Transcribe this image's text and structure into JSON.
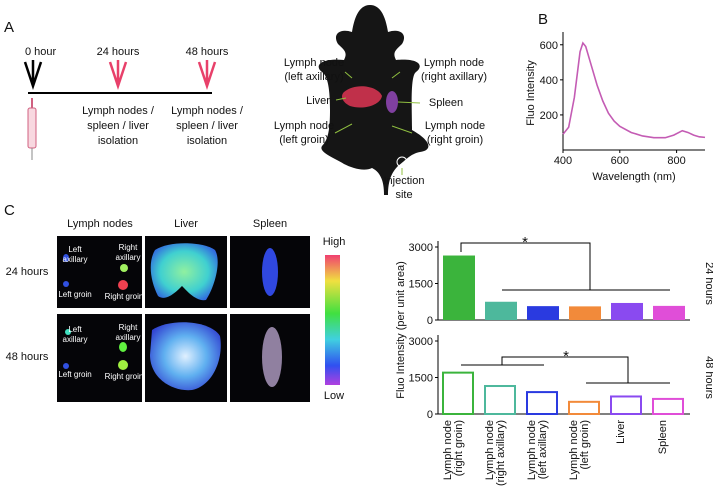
{
  "panel_a": {
    "label": "A",
    "timeline": [
      {
        "time": "0 hour"
      },
      {
        "time": "24 hours",
        "step": [
          "Lymph nodes /",
          "spleen / liver",
          "isolation"
        ]
      },
      {
        "time": "48 hours",
        "step": [
          "Lymph nodes /",
          "spleen / liver",
          "isolation"
        ]
      }
    ],
    "mouse_labels": [
      [
        "Lymph node",
        "(left axillary)"
      ],
      [
        "Liver"
      ],
      [
        "Lymph node",
        "(left groin)"
      ],
      [
        "Lymph node",
        "(right axillary)"
      ],
      [
        "Spleen"
      ],
      [
        "Lymph node",
        "(right groin)"
      ],
      [
        "Injection",
        "site"
      ]
    ]
  },
  "panel_b": {
    "label": "B"
  },
  "panel_c": {
    "label": "C",
    "columns": [
      "Lymph nodes",
      "Liver",
      "Spleen"
    ],
    "rows": [
      "24 hours",
      "48 hours"
    ],
    "node_labels": [
      [
        "Left",
        "axillary"
      ],
      [
        "Right",
        "axillary"
      ],
      [
        "Left groin"
      ],
      [
        "Right groin"
      ]
    ],
    "scale": [
      "High",
      "Low"
    ]
  },
  "chart_data": [
    {
      "type": "line",
      "x_label": "Wavelength (nm)",
      "y_label": "Fluo Intensity",
      "x": [
        400,
        420,
        440,
        460,
        470,
        480,
        500,
        520,
        540,
        560,
        580,
        600,
        640,
        680,
        720,
        760,
        790,
        820,
        840,
        860,
        880,
        900
      ],
      "series": [
        {
          "color": "#c45cb4",
          "values": [
            90,
            130,
            300,
            560,
            610,
            590,
            480,
            370,
            280,
            210,
            165,
            135,
            100,
            80,
            70,
            70,
            85,
            110,
            100,
            85,
            75,
            72
          ]
        }
      ],
      "xlim": [
        400,
        900
      ],
      "xticks": [
        400,
        600,
        800
      ],
      "ylim": [
        0,
        650
      ],
      "yticks": [
        200,
        400,
        600
      ]
    },
    {
      "type": "bar",
      "y_label": "Fluo Intensity (per unit area)",
      "categories": [
        [
          "Lymph node",
          "(right groin)"
        ],
        [
          "Lymph node",
          "(right axillary)"
        ],
        [
          "Lymph node",
          "(left axillary)"
        ],
        [
          "Lymph node",
          "(left groin)"
        ],
        [
          "Liver"
        ],
        [
          "Spleen"
        ]
      ],
      "colors": [
        "#3bb43c",
        "#4db89c",
        "#2a3ae0",
        "#f28a3a",
        "#8a4af0",
        "#e04ed8"
      ],
      "series": [
        {
          "name": "24 hours",
          "style": "filled",
          "values": [
            2650,
            750,
            570,
            560,
            700,
            580
          ]
        },
        {
          "name": "48 hours",
          "style": "outline",
          "values": [
            1700,
            1150,
            900,
            500,
            720,
            620
          ]
        }
      ],
      "ylim": [
        0,
        3000
      ],
      "yticks": [
        0,
        1500,
        3000
      ]
    }
  ]
}
